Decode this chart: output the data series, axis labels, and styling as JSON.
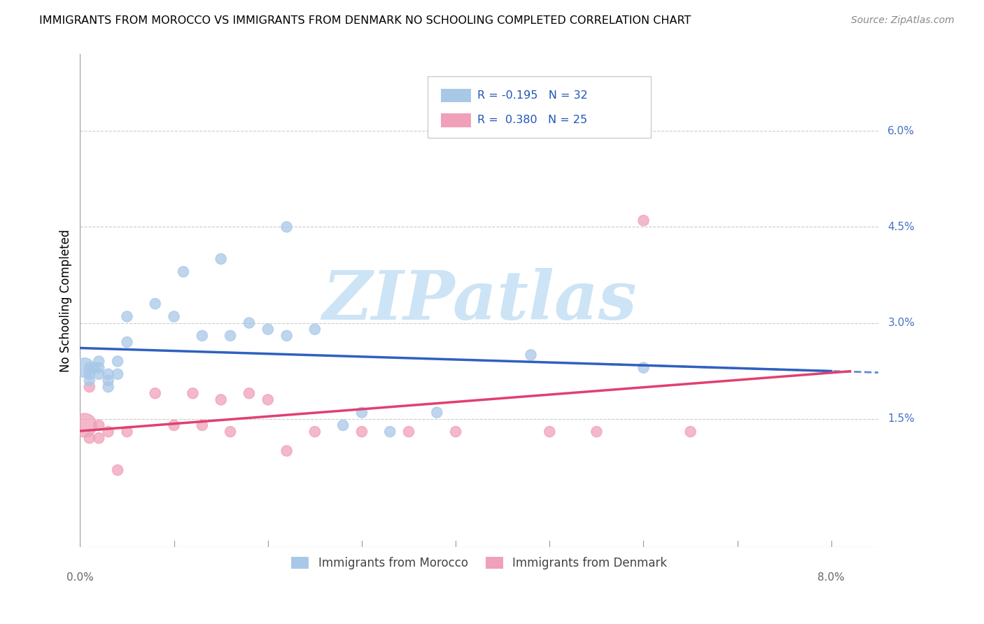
{
  "title": "IMMIGRANTS FROM MOROCCO VS IMMIGRANTS FROM DENMARK NO SCHOOLING COMPLETED CORRELATION CHART",
  "source": "Source: ZipAtlas.com",
  "ylabel": "No Schooling Completed",
  "xlim": [
    0.0,
    0.085
  ],
  "ylim": [
    -0.005,
    0.072
  ],
  "morocco_R": -0.195,
  "morocco_N": 32,
  "denmark_R": 0.38,
  "denmark_N": 25,
  "morocco_color": "#a8c8e8",
  "denmark_color": "#f0a0b8",
  "morocco_line_color": "#3060c0",
  "denmark_line_color": "#e04070",
  "morocco_scatter_x": [
    0.0005,
    0.001,
    0.001,
    0.001,
    0.0015,
    0.002,
    0.002,
    0.002,
    0.003,
    0.003,
    0.003,
    0.004,
    0.004,
    0.005,
    0.005,
    0.008,
    0.01,
    0.011,
    0.013,
    0.015,
    0.016,
    0.018,
    0.02,
    0.022,
    0.022,
    0.025,
    0.028,
    0.03,
    0.033,
    0.038,
    0.048,
    0.06
  ],
  "morocco_scatter_y": [
    0.023,
    0.023,
    0.022,
    0.021,
    0.023,
    0.024,
    0.023,
    0.022,
    0.022,
    0.021,
    0.02,
    0.024,
    0.022,
    0.031,
    0.027,
    0.033,
    0.031,
    0.038,
    0.028,
    0.04,
    0.028,
    0.03,
    0.029,
    0.045,
    0.028,
    0.029,
    0.014,
    0.016,
    0.013,
    0.016,
    0.025,
    0.023
  ],
  "morocco_sizes": [
    400,
    120,
    120,
    120,
    120,
    120,
    120,
    120,
    120,
    120,
    120,
    120,
    120,
    120,
    120,
    120,
    120,
    120,
    120,
    120,
    120,
    120,
    120,
    120,
    120,
    120,
    120,
    120,
    120,
    120,
    120,
    120
  ],
  "denmark_scatter_x": [
    0.0005,
    0.001,
    0.001,
    0.002,
    0.002,
    0.003,
    0.004,
    0.005,
    0.008,
    0.01,
    0.012,
    0.013,
    0.015,
    0.016,
    0.018,
    0.02,
    0.022,
    0.025,
    0.03,
    0.035,
    0.04,
    0.05,
    0.055,
    0.06,
    0.065
  ],
  "denmark_scatter_y": [
    0.014,
    0.012,
    0.02,
    0.014,
    0.012,
    0.013,
    0.007,
    0.013,
    0.019,
    0.014,
    0.019,
    0.014,
    0.018,
    0.013,
    0.019,
    0.018,
    0.01,
    0.013,
    0.013,
    0.013,
    0.013,
    0.013,
    0.013,
    0.046,
    0.013
  ],
  "denmark_sizes": [
    600,
    120,
    120,
    120,
    120,
    120,
    120,
    120,
    120,
    120,
    120,
    120,
    120,
    120,
    120,
    120,
    120,
    120,
    120,
    120,
    120,
    120,
    120,
    120,
    120
  ],
  "watermark_text": "ZIPatlas",
  "watermark_color": "#cce4f5",
  "grid_color": "#cccccc",
  "grid_style": "--",
  "background_color": "#ffffff",
  "ytick_vals": [
    0.015,
    0.03,
    0.045,
    0.06
  ],
  "ytick_labels": [
    "1.5%",
    "3.0%",
    "4.5%",
    "6.0%"
  ],
  "xtick_left_label": "0.0%",
  "xtick_right_label": "8.0%"
}
